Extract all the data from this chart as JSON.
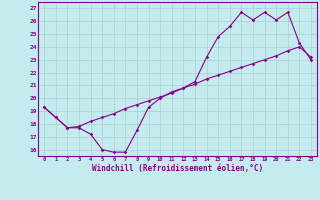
{
  "xlabel": "Windchill (Refroidissement éolien,°C)",
  "xlim": [
    -0.5,
    23.5
  ],
  "ylim": [
    15.5,
    27.5
  ],
  "xticks": [
    0,
    1,
    2,
    3,
    4,
    5,
    6,
    7,
    8,
    9,
    10,
    11,
    12,
    13,
    14,
    15,
    16,
    17,
    18,
    19,
    20,
    21,
    22,
    23
  ],
  "yticks": [
    16,
    17,
    18,
    19,
    20,
    21,
    22,
    23,
    24,
    25,
    26,
    27
  ],
  "bg_color": "#c4ecee",
  "line_color": "#880088",
  "grid_color": "#aacfcf",
  "line1_x": [
    0,
    1,
    2,
    3,
    4,
    5,
    6,
    7,
    8,
    9,
    10,
    11,
    12,
    13,
    14,
    15,
    16,
    17,
    18,
    19,
    20,
    21,
    22,
    23
  ],
  "line1_y": [
    19.3,
    18.5,
    17.7,
    17.7,
    17.2,
    16.0,
    15.8,
    15.8,
    17.5,
    19.3,
    20.0,
    20.5,
    20.8,
    21.3,
    23.2,
    24.8,
    25.6,
    26.7,
    26.1,
    26.7,
    26.1,
    26.7,
    24.3,
    23.0
  ],
  "line2_x": [
    0,
    1,
    2,
    3,
    4,
    5,
    6,
    7,
    8,
    9,
    10,
    11,
    12,
    13,
    14,
    15,
    16,
    17,
    18,
    19,
    20,
    21,
    22,
    23
  ],
  "line2_y": [
    19.3,
    18.5,
    17.7,
    17.8,
    18.2,
    18.5,
    18.8,
    19.2,
    19.5,
    19.8,
    20.1,
    20.4,
    20.8,
    21.1,
    21.5,
    21.8,
    22.1,
    22.4,
    22.7,
    23.0,
    23.3,
    23.7,
    24.0,
    23.2
  ]
}
